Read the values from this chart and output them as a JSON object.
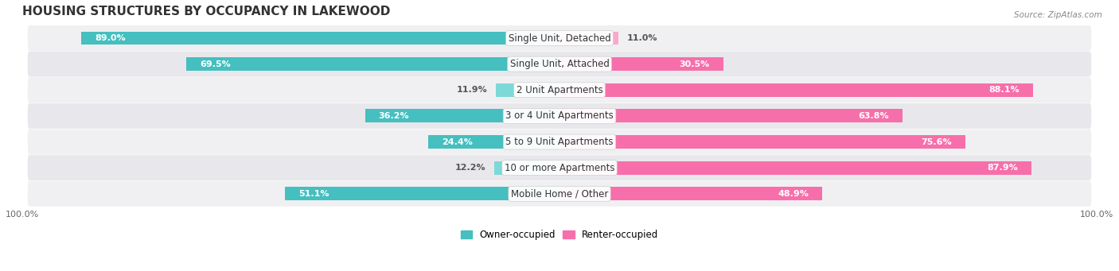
{
  "title": "HOUSING STRUCTURES BY OCCUPANCY IN LAKEWOOD",
  "source": "Source: ZipAtlas.com",
  "categories": [
    "Single Unit, Detached",
    "Single Unit, Attached",
    "2 Unit Apartments",
    "3 or 4 Unit Apartments",
    "5 to 9 Unit Apartments",
    "10 or more Apartments",
    "Mobile Home / Other"
  ],
  "owner_values": [
    89.0,
    69.5,
    11.9,
    36.2,
    24.4,
    12.2,
    51.1
  ],
  "renter_values": [
    11.0,
    30.5,
    88.1,
    63.8,
    75.6,
    87.9,
    48.9
  ],
  "owner_color": "#45BFBF",
  "renter_color": "#F76FAA",
  "owner_color_light": "#7ED8D8",
  "renter_color_light": "#F9A8CC",
  "owner_label": "Owner-occupied",
  "renter_label": "Renter-occupied",
  "bar_height": 0.52,
  "title_fontsize": 11,
  "label_fontsize": 8.5,
  "value_fontsize": 8,
  "axis_label_fontsize": 8,
  "row_colors": [
    "#f0f0f2",
    "#e8e8ec"
  ],
  "fig_bg": "#ffffff"
}
